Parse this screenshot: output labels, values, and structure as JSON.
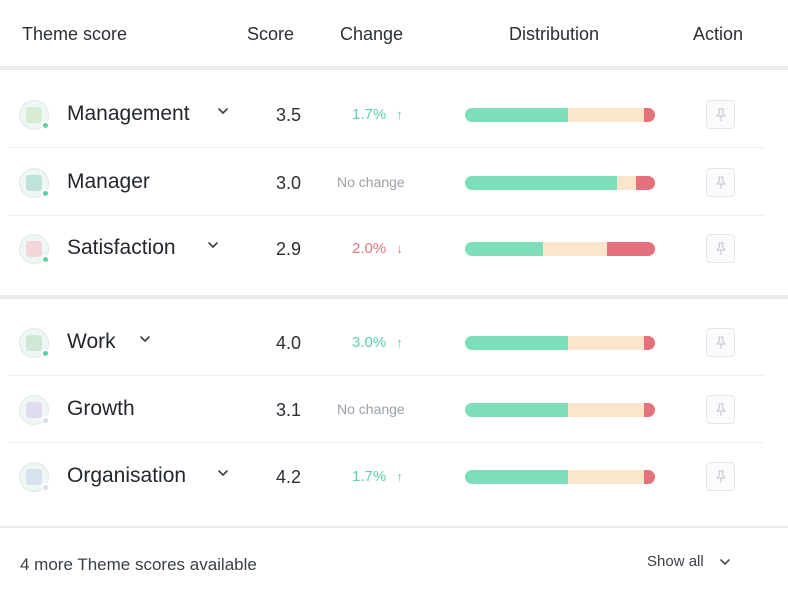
{
  "header": {
    "theme_score": "Theme score",
    "score": "Score",
    "change": "Change",
    "distribution": "Distribution",
    "action": "Action"
  },
  "rows": [
    {
      "name": "Management",
      "score": "3.5",
      "change": "1.7%",
      "direction": "up",
      "expandable": true,
      "distribution": [
        0.54,
        0.4,
        0.06
      ],
      "icon": "management-icon",
      "status": "active"
    },
    {
      "name": "Manager",
      "score": "3.0",
      "change": "No change",
      "direction": "none",
      "expandable": false,
      "distribution": [
        0.8,
        0.1,
        0.1
      ],
      "icon": "manager-icon",
      "status": "active"
    },
    {
      "name": "Satisfaction",
      "score": "2.9",
      "change": "2.0%",
      "direction": "down",
      "expandable": true,
      "distribution": [
        0.41,
        0.34,
        0.25
      ],
      "icon": "satisfaction-icon",
      "status": "active"
    },
    {
      "name": "Work",
      "score": "4.0",
      "change": "3.0%",
      "direction": "up",
      "expandable": true,
      "distribution": [
        0.54,
        0.4,
        0.06
      ],
      "icon": "work-icon",
      "status": "active"
    },
    {
      "name": "Growth",
      "score": "3.1",
      "change": "No change",
      "direction": "none",
      "expandable": false,
      "distribution": [
        0.54,
        0.4,
        0.06
      ],
      "icon": "growth-icon",
      "status": "inactive"
    },
    {
      "name": "Organisation",
      "score": "4.2",
      "change": "1.7%",
      "direction": "up",
      "expandable": true,
      "distribution": [
        0.54,
        0.4,
        0.06
      ],
      "icon": "organisation-icon",
      "status": "inactive"
    }
  ],
  "footer": {
    "more_text": "4 more Theme scores available",
    "show_all": "Show all"
  },
  "colors": {
    "positive": "#7cdfb9",
    "neutral": "#fbe6cb",
    "negative": "#e4727c",
    "up_text": "#5ed1a2",
    "down_text": "#e0757b"
  }
}
